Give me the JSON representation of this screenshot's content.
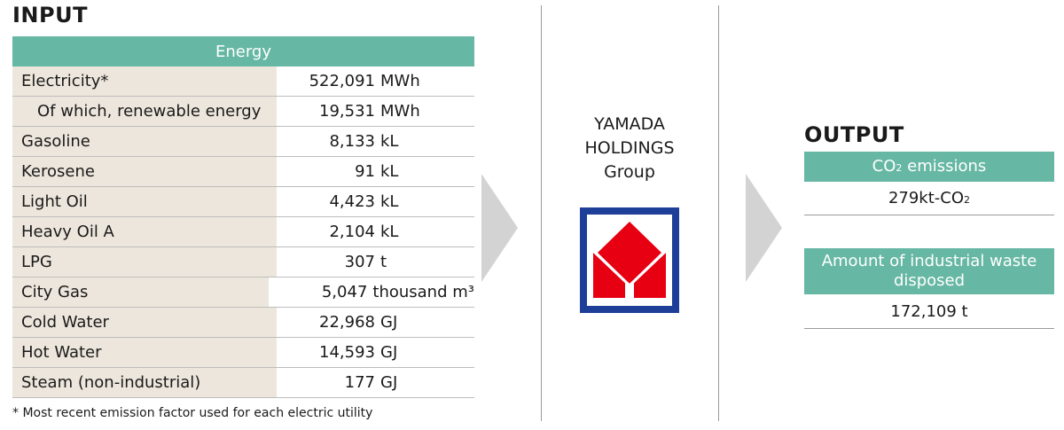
{
  "input": {
    "title": "INPUT",
    "table_header": "Energy",
    "rows": [
      {
        "label": "Electricity*",
        "value": "522,091",
        "unit": "MWh"
      },
      {
        "label": "Of which, renewable energy",
        "value": "19,531",
        "unit": "MWh"
      },
      {
        "label": "Gasoline",
        "value": "8,133",
        "unit": "kL"
      },
      {
        "label": "Kerosene",
        "value": "91",
        "unit": "kL"
      },
      {
        "label": "Light Oil",
        "value": "4,423",
        "unit": "kL"
      },
      {
        "label": "Heavy Oil A",
        "value": "2,104",
        "unit": "kL"
      },
      {
        "label": "LPG",
        "value": "307",
        "unit": "t"
      },
      {
        "label": "City Gas",
        "value": "5,047",
        "unit": "thousand m³"
      },
      {
        "label": "Cold Water",
        "value": "22,968",
        "unit": "GJ"
      },
      {
        "label": "Hot Water",
        "value": "14,593",
        "unit": "GJ"
      },
      {
        "label": "Steam (non-industrial)",
        "value": "177",
        "unit": "GJ"
      }
    ],
    "footnote": "* Most recent emission factor used for each electric utility"
  },
  "company": {
    "line1": "YAMADA",
    "line2": "HOLDINGS",
    "line3": "Group",
    "logo_colors": {
      "frame": "#1e3f98",
      "mark": "#e60012"
    }
  },
  "output": {
    "title": "OUTPUT",
    "co2": {
      "header_prefix": "CO",
      "header_sub": "2",
      "header_suffix": " emissions",
      "value_prefix": "279kt-CO",
      "value_sub": "2"
    },
    "waste": {
      "header_line1": "Amount of industrial waste",
      "header_line2": "disposed",
      "value": "172,109 t"
    }
  },
  "colors": {
    "accent": "#66b7a3",
    "label_bg": "#ede6dc",
    "arrow": "#d3d3d3"
  }
}
